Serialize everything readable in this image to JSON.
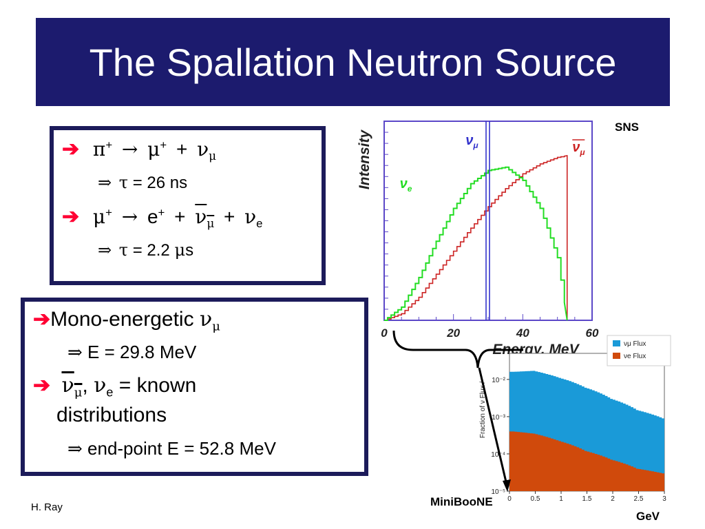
{
  "title": "The Spallation Neutron Source",
  "box1": {
    "line1": {
      "pi": "π",
      "plus1": "+",
      "arrow": "→",
      "mu": "μ",
      "plus2": "+",
      "joiner": "+",
      "nu": "ν",
      "nu_sub": "μ"
    },
    "line2": {
      "implies": "⇒",
      "tau": "τ",
      "text": " = 26 ns"
    },
    "line3": {
      "mu": "μ",
      "plus1": "+",
      "arrow": "→",
      "e": "e",
      "plus2": "+",
      "joiner1": "+",
      "nubar": "ν",
      "nubar_sub": "μ",
      "joiner2": "+",
      "nu": "ν",
      "nu_sub": "e"
    },
    "line4": {
      "implies": "⇒",
      "tau": "τ",
      "text1": " = 2.2 ",
      "mu": "μ",
      "text2": "s"
    }
  },
  "box2": {
    "line1": {
      "text": "Mono-energetic ",
      "nu": "ν",
      "nu_sub": "μ"
    },
    "line2": {
      "implies": "⇒",
      "text": " E = 29.8 MeV"
    },
    "line3": {
      "nubar": "ν",
      "nubar_sub": "μ",
      "comma": ",",
      "nu": "ν",
      "nu_sub": "e",
      "text": " = known"
    },
    "line3b": "distributions",
    "line4": {
      "implies": "⇒",
      "text": " end-point E = 52.8 MeV"
    }
  },
  "labels": {
    "sns": "SNS",
    "miniboone": "MiniBooNE",
    "gev": "GeV",
    "author": "H. Ray"
  },
  "colors": {
    "title_bg": "#1c1b6e",
    "box_border": "#1c1b5a",
    "arrow_red": "#ff0033",
    "sns_frame": "#5b47c8",
    "numu_line": "#3333cc",
    "nue_green": "#22dd22",
    "numubar_red": "#cc2222",
    "flux_blue": "#1a9ad8",
    "flux_orange": "#d04a0c"
  },
  "chart_data": [
    {
      "type": "line",
      "name": "sns",
      "xlabel": "Energy, MeV",
      "ylabel": "Intensity",
      "x_ticks": [
        "0",
        "20",
        "40",
        "60"
      ],
      "xlim": [
        0,
        60
      ],
      "series": [
        {
          "name": "ν_μ",
          "shape": "mono-energetic line",
          "x": 29.8
        },
        {
          "name": "ν_e",
          "x": [
            0,
            5,
            10,
            15,
            20,
            25,
            30,
            35,
            40,
            45,
            50,
            52.8
          ],
          "y": [
            0,
            0.08,
            0.26,
            0.48,
            0.68,
            0.83,
            0.91,
            0.93,
            0.85,
            0.68,
            0.38,
            0
          ]
        },
        {
          "name": "ν̄_μ",
          "x": [
            0,
            5,
            10,
            15,
            20,
            25,
            30,
            35,
            40,
            45,
            50,
            52.8
          ],
          "y": [
            0,
            0.04,
            0.14,
            0.28,
            0.42,
            0.56,
            0.69,
            0.8,
            0.89,
            0.95,
            0.99,
            1.0
          ]
        }
      ]
    },
    {
      "type": "area",
      "name": "miniboone",
      "ylabel": "Fraction of ν Flux /",
      "x_ticks": [
        "0",
        "0.5",
        "1",
        "1.5",
        "2",
        "2.5",
        "3"
      ],
      "y_ticks": [
        "10⁻²",
        "10⁻³",
        "10⁻⁴",
        "10⁻⁵"
      ],
      "xlim": [
        0,
        3
      ],
      "legend": [
        "νμ Flux",
        "νe Flux"
      ],
      "legend_position": "top-right",
      "series": [
        {
          "name": "νμ Flux",
          "x": [
            0.1,
            0.5,
            1.0,
            1.5,
            2.0,
            2.5,
            3.0
          ],
          "y": [
            0.016,
            0.017,
            0.011,
            0.006,
            0.003,
            0.0015,
            0.0009
          ]
        },
        {
          "name": "νe Flux",
          "x": [
            0.1,
            0.5,
            1.0,
            1.5,
            2.0,
            2.5,
            3.0
          ],
          "y": [
            0.0004,
            0.00035,
            0.00022,
            0.00012,
            7e-05,
            4e-05,
            3e-05
          ]
        }
      ]
    }
  ]
}
